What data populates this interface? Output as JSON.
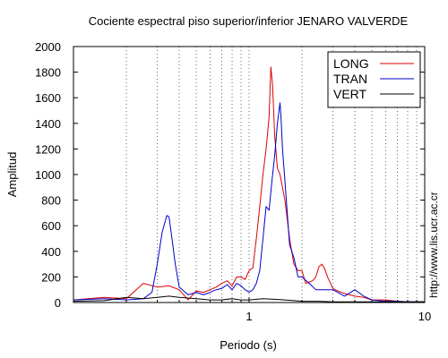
{
  "chart_data": {
    "type": "line",
    "title": "Cociente espectral piso superior/inferior  JENARO VALVERDE",
    "xlabel": "Periodo (s)",
    "ylabel": "Amplitud",
    "xscale": "log",
    "xlim": [
      0.1,
      10
    ],
    "ylim": [
      0,
      2000
    ],
    "x_ticks": [
      {
        "value": 1,
        "label": "1"
      },
      {
        "value": 10,
        "label": "10"
      }
    ],
    "y_ticks": [
      {
        "value": 0,
        "label": "0"
      },
      {
        "value": 200,
        "label": "200"
      },
      {
        "value": 400,
        "label": "400"
      },
      {
        "value": 600,
        "label": "600"
      },
      {
        "value": 800,
        "label": "800"
      },
      {
        "value": 1000,
        "label": "1000"
      },
      {
        "value": 1200,
        "label": "1200"
      },
      {
        "value": 1400,
        "label": "1400"
      },
      {
        "value": 1600,
        "label": "1600"
      },
      {
        "value": 1800,
        "label": "1800"
      },
      {
        "value": 2000,
        "label": "2000"
      }
    ],
    "grid": "vertical dashed at log minor ticks",
    "legend_position": "top-right",
    "side_note": "http://www.lis.ucr.ac.cr",
    "series": [
      {
        "name": "LONG",
        "color": "#dd0000",
        "x": [
          0.1,
          0.15,
          0.2,
          0.25,
          0.3,
          0.35,
          0.4,
          0.45,
          0.5,
          0.55,
          0.6,
          0.65,
          0.7,
          0.75,
          0.8,
          0.85,
          0.9,
          0.95,
          1.0,
          1.05,
          1.1,
          1.15,
          1.2,
          1.25,
          1.3,
          1.33,
          1.36,
          1.4,
          1.45,
          1.5,
          1.55,
          1.6,
          1.65,
          1.7,
          1.8,
          1.9,
          2.0,
          2.1,
          2.2,
          2.3,
          2.4,
          2.5,
          2.6,
          2.7,
          2.8,
          3.0,
          3.2,
          3.5,
          4.0,
          4.5,
          5.0,
          6.0,
          7.0,
          8.0,
          10.0
        ],
        "y": [
          20,
          40,
          30,
          150,
          120,
          130,
          100,
          20,
          90,
          80,
          100,
          120,
          150,
          170,
          130,
          200,
          200,
          180,
          250,
          270,
          500,
          750,
          1000,
          1200,
          1450,
          1840,
          1700,
          1300,
          1050,
          1000,
          900,
          800,
          650,
          500,
          300,
          250,
          250,
          150,
          160,
          170,
          200,
          280,
          300,
          260,
          200,
          110,
          90,
          70,
          50,
          40,
          20,
          20,
          10,
          5,
          5
        ]
      },
      {
        "name": "TRAN",
        "color": "#0000cc",
        "x": [
          0.1,
          0.15,
          0.2,
          0.25,
          0.28,
          0.3,
          0.32,
          0.34,
          0.35,
          0.36,
          0.38,
          0.4,
          0.45,
          0.5,
          0.55,
          0.6,
          0.65,
          0.7,
          0.75,
          0.8,
          0.85,
          0.9,
          0.95,
          1.0,
          1.05,
          1.1,
          1.15,
          1.2,
          1.25,
          1.3,
          1.35,
          1.4,
          1.45,
          1.5,
          1.52,
          1.55,
          1.6,
          1.65,
          1.7,
          1.8,
          1.9,
          2.0,
          2.2,
          2.4,
          2.6,
          2.8,
          3.0,
          3.5,
          4.0,
          4.5,
          5.0,
          6.0,
          7.0,
          8.0,
          10.0
        ],
        "y": [
          20,
          30,
          20,
          30,
          80,
          300,
          550,
          680,
          670,
          550,
          300,
          120,
          60,
          80,
          60,
          80,
          100,
          110,
          140,
          100,
          150,
          130,
          100,
          80,
          100,
          150,
          250,
          500,
          750,
          720,
          950,
          1150,
          1400,
          1560,
          1450,
          1200,
          950,
          700,
          450,
          350,
          200,
          200,
          150,
          100,
          100,
          100,
          100,
          50,
          100,
          50,
          20,
          10,
          10,
          5,
          5
        ]
      },
      {
        "name": "VERT",
        "color": "#000000",
        "x": [
          0.1,
          0.15,
          0.2,
          0.25,
          0.3,
          0.35,
          0.4,
          0.5,
          0.6,
          0.7,
          0.8,
          0.9,
          1.0,
          1.2,
          1.4,
          1.6,
          1.8,
          2.0,
          2.5,
          3.0,
          4.0,
          5.0,
          6.0,
          8.0,
          10.0
        ],
        "y": [
          10,
          15,
          40,
          30,
          40,
          50,
          40,
          30,
          20,
          20,
          30,
          20,
          20,
          30,
          25,
          20,
          15,
          10,
          10,
          5,
          5,
          5,
          5,
          5,
          5
        ]
      }
    ]
  }
}
